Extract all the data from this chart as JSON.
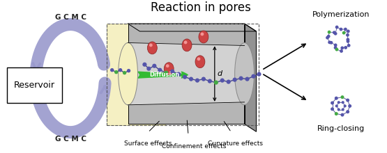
{
  "title": "Reaction in pores",
  "reservoir_label": "Reservoir",
  "gcmc_label": "G C M C",
  "diffusion_label": "Diffusion",
  "d_label": "d",
  "surface_effects": "Surface effects",
  "confinement_effects": "Confinement effects",
  "curvature_effects": "Curvature effects",
  "ring_closing": "Ring-closing",
  "polymerization": "Polymerization",
  "arrow_color": "#9999cc",
  "yellow_bg": "#f5f0c0",
  "diffusion_arrow_color": "#33bb33",
  "blue_molecule": "#5555aa",
  "green_molecule": "#44aa44",
  "red_catalyst": "#cc4444",
  "bg_color": "#ffffff",
  "pore_face_color": "#b5b5b5",
  "pore_top_color": "#a8a8a8",
  "pore_right_color": "#929292",
  "inner_pore_color": "#d2d2d2"
}
